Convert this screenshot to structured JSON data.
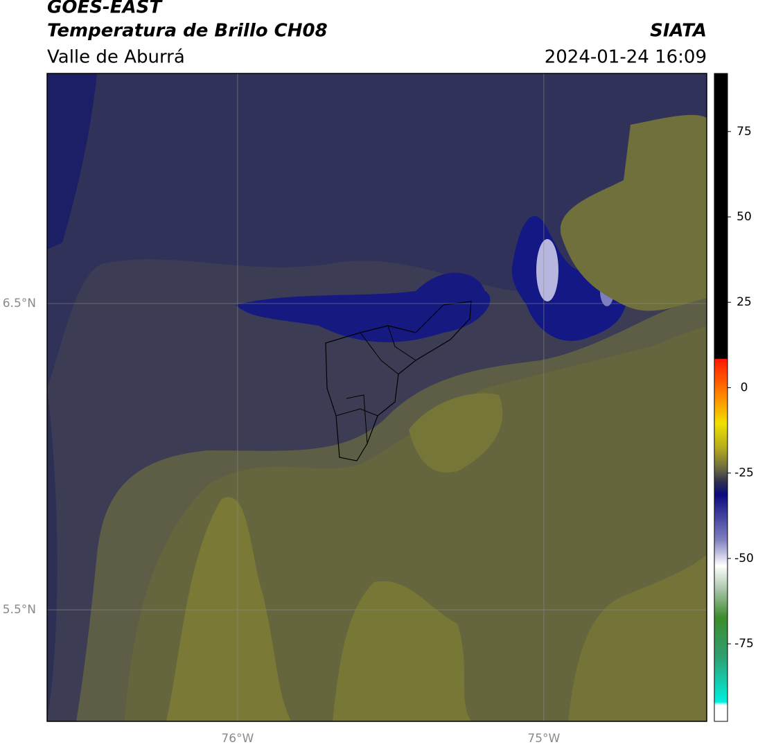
{
  "header": {
    "title": "GOES-EAST",
    "subtitle": "Temperatura de Brillo CH08",
    "source": "SIATA",
    "region": "Valle de Aburrá",
    "datetime": "2024-01-24 16:09"
  },
  "map": {
    "xlim": [
      -76.622,
      -74.468
    ],
    "ylim": [
      5.136,
      7.251
    ],
    "lat_ticks": [
      {
        "value": 6.5,
        "label": "6.5°N"
      },
      {
        "value": 5.5,
        "label": "5.5°N"
      }
    ],
    "lon_ticks": [
      {
        "value": -76,
        "label": "76°W"
      },
      {
        "value": -75,
        "label": "75°W"
      }
    ]
  },
  "colorbar": {
    "lim": [
      -97.7,
      92
    ],
    "ticks": [
      75,
      50,
      25,
      0,
      -25,
      -50,
      -75
    ]
  }
}
